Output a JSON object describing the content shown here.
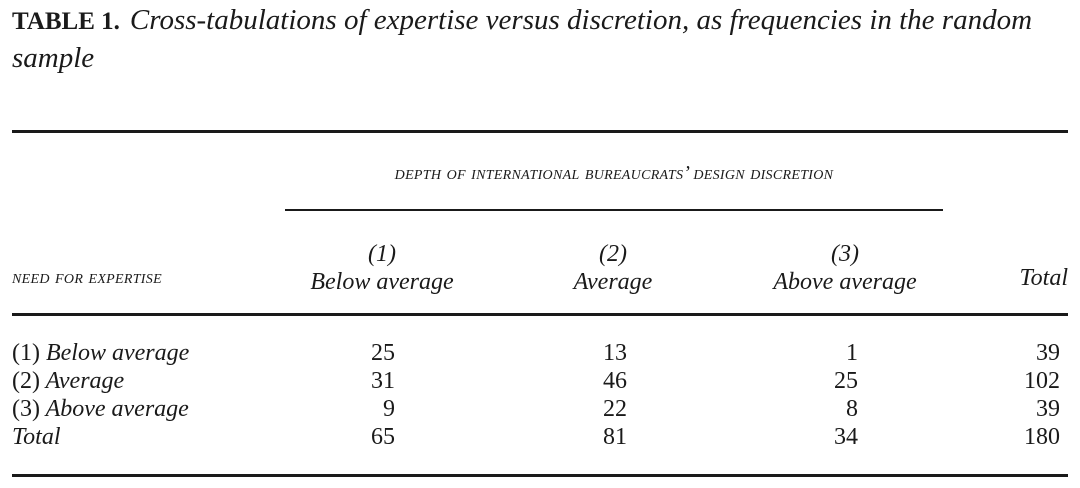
{
  "caption": {
    "label": "TABLE 1.",
    "text": "Cross-tabulations of expertise versus discretion, as frequencies in the random sample"
  },
  "table": {
    "spanner": "depth of international bureaucrats’ design discretion",
    "stub_header": "need for expertise",
    "columns": [
      {
        "number": "(1)",
        "label": "Below average"
      },
      {
        "number": "(2)",
        "label": "Average"
      },
      {
        "number": "(3)",
        "label": "Above average"
      }
    ],
    "total_header": "Total",
    "rows": [
      {
        "number": "(1)",
        "label": "Below average",
        "values": [
          "25",
          "13",
          "1"
        ],
        "total": "39"
      },
      {
        "number": "(2)",
        "label": "Average",
        "values": [
          "31",
          "46",
          "25"
        ],
        "total": "102"
      },
      {
        "number": "(3)",
        "label": "Above average",
        "values": [
          "9",
          "22",
          "8"
        ],
        "total": "39"
      }
    ],
    "total_row": {
      "label": "Total",
      "values": [
        "65",
        "81",
        "34"
      ],
      "total": "180"
    }
  }
}
